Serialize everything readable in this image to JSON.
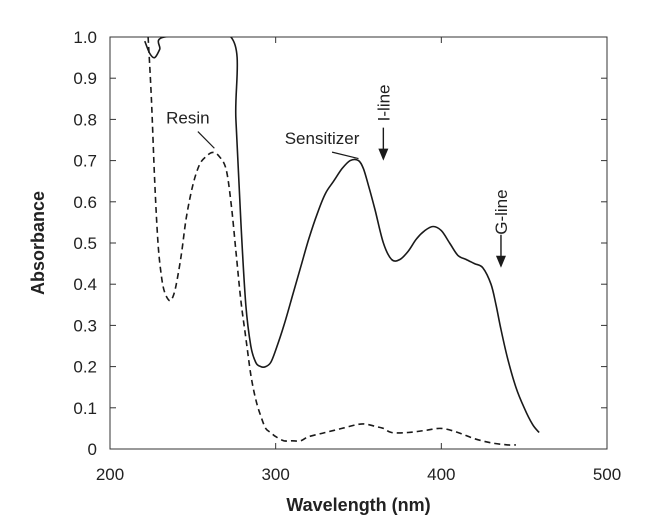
{
  "chart_data": {
    "type": "line",
    "title": "",
    "xlabel": "Wavelength (nm)",
    "ylabel": "Absorbance",
    "xlim": [
      200,
      500
    ],
    "ylim": [
      0,
      1.0
    ],
    "x_ticks": [
      "200",
      "300",
      "400",
      "500"
    ],
    "y_ticks": [
      "0",
      "0.1",
      "0.2",
      "0.3",
      "0.4",
      "0.5",
      "0.6",
      "0.7",
      "0.8",
      "0.9",
      "1.0"
    ],
    "grid": false,
    "series": [
      {
        "name": "Sensitizer",
        "line_style": "solid",
        "x": [
          221,
          224,
          227,
          230,
          233,
          273,
          276,
          279,
          282,
          285,
          288,
          291,
          294,
          297,
          300,
          305,
          310,
          315,
          320,
          325,
          330,
          335,
          340,
          345,
          350,
          353,
          356,
          360,
          365,
          370,
          375,
          380,
          385,
          390,
          395,
          400,
          405,
          410,
          415,
          420,
          425,
          430,
          433,
          436,
          440,
          445,
          450,
          455,
          459
        ],
        "y": [
          0.99,
          0.96,
          0.95,
          0.97,
          1.0,
          1.0,
          0.8,
          0.55,
          0.35,
          0.25,
          0.21,
          0.2,
          0.2,
          0.21,
          0.24,
          0.3,
          0.37,
          0.44,
          0.51,
          0.57,
          0.62,
          0.65,
          0.68,
          0.7,
          0.7,
          0.68,
          0.64,
          0.58,
          0.5,
          0.46,
          0.46,
          0.48,
          0.51,
          0.53,
          0.54,
          0.53,
          0.5,
          0.47,
          0.46,
          0.45,
          0.44,
          0.4,
          0.35,
          0.29,
          0.22,
          0.15,
          0.1,
          0.06,
          0.04
        ]
      },
      {
        "name": "Resin",
        "line_style": "dashed",
        "x": [
          223,
          225,
          227,
          229,
          231,
          233,
          236,
          238,
          240,
          243,
          246,
          250,
          254,
          258,
          262,
          266,
          270,
          273,
          276,
          279,
          282,
          285,
          288,
          291,
          294,
          297,
          300,
          305,
          310,
          315,
          320,
          330,
          340,
          350,
          355,
          360,
          365,
          370,
          380,
          390,
          400,
          410,
          420,
          430,
          440,
          445
        ],
        "y": [
          1.0,
          0.85,
          0.65,
          0.5,
          0.42,
          0.38,
          0.36,
          0.37,
          0.4,
          0.47,
          0.56,
          0.64,
          0.69,
          0.71,
          0.72,
          0.71,
          0.68,
          0.6,
          0.48,
          0.36,
          0.27,
          0.18,
          0.12,
          0.08,
          0.05,
          0.04,
          0.03,
          0.02,
          0.02,
          0.02,
          0.03,
          0.04,
          0.05,
          0.06,
          0.06,
          0.055,
          0.05,
          0.04,
          0.04,
          0.045,
          0.05,
          0.04,
          0.025,
          0.015,
          0.01,
          0.01
        ]
      }
    ],
    "annotations": [
      {
        "text": "Resin",
        "at": [
          263,
          0.73
        ],
        "label_at": [
          247,
          0.79
        ]
      },
      {
        "text": "Sensitizer",
        "at": [
          350,
          0.705
        ],
        "label_at": [
          328,
          0.74
        ]
      },
      {
        "text": "I-line",
        "arrow_x": 365,
        "arrow_from": 0.78,
        "arrow_to": 0.7,
        "label_y": 0.84,
        "orientation": "vertical"
      },
      {
        "text": "G-line",
        "arrow_x": 436,
        "arrow_from": 0.52,
        "arrow_to": 0.44,
        "label_y": 0.575,
        "orientation": "vertical"
      }
    ],
    "colors": {
      "line": "#1a1a1a",
      "axis": "#333333",
      "text": "#222222"
    }
  }
}
